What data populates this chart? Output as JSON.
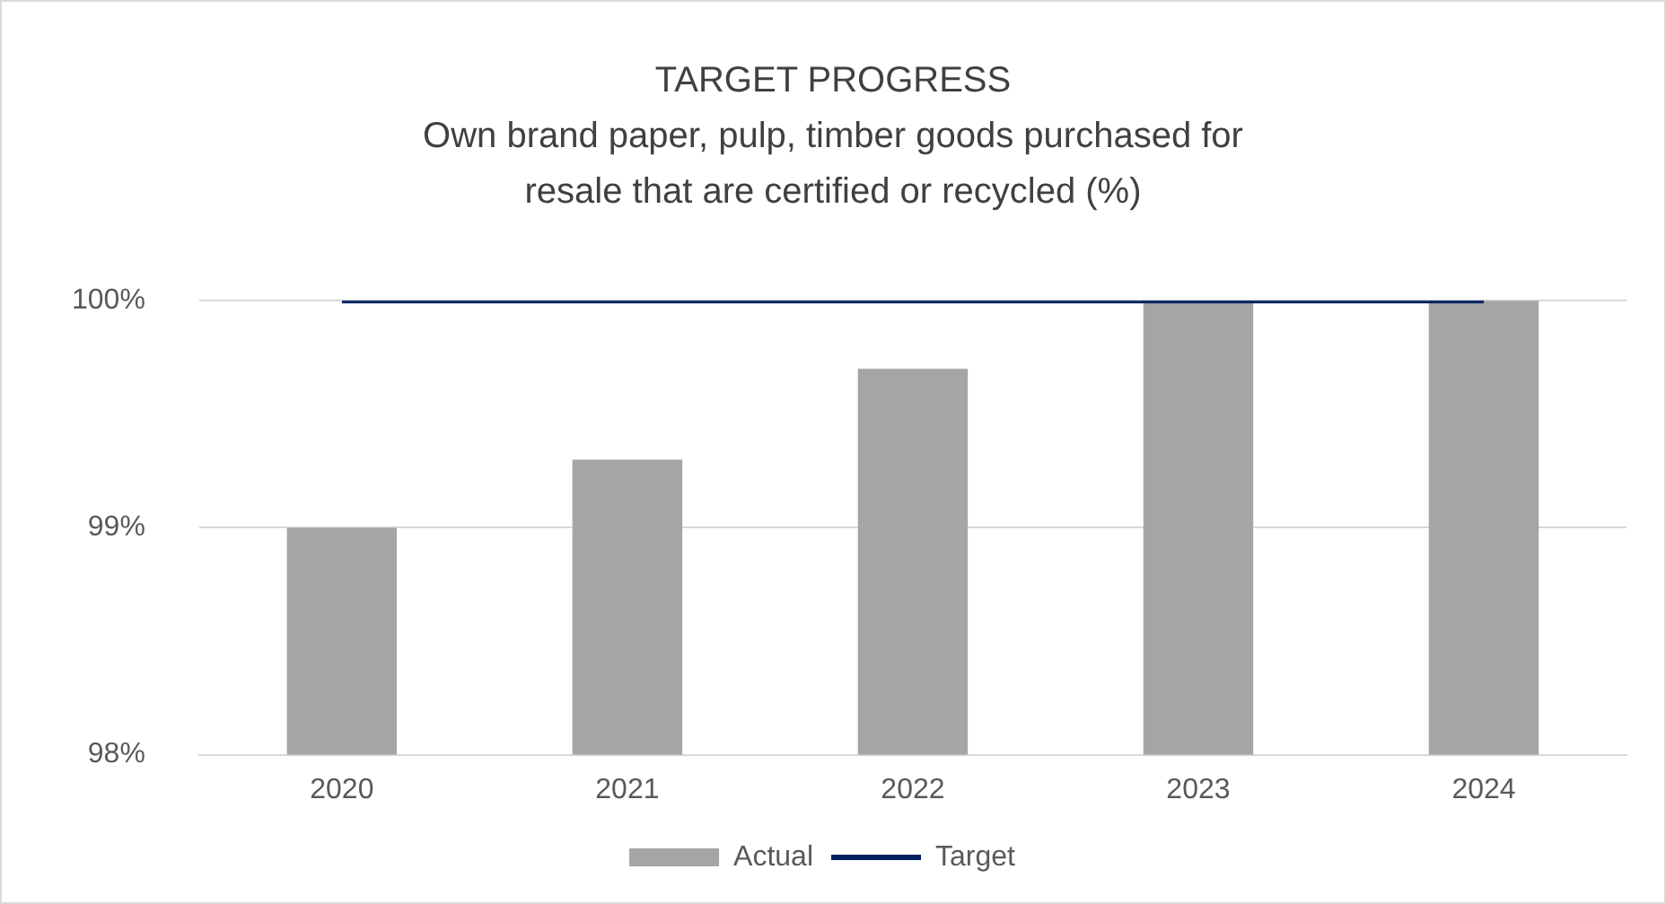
{
  "chart_data": {
    "type": "bar",
    "title": "TARGET PROGRESS",
    "subtitle": "Own brand paper, pulp, timber goods purchased for resale that are certified or recycled (%)",
    "categories": [
      "2020",
      "2021",
      "2022",
      "2023",
      "2024"
    ],
    "series": [
      {
        "name": "Actual",
        "color": "#a5a5a5",
        "values": [
          99.0,
          99.3,
          99.7,
          100,
          100
        ]
      },
      {
        "name": "Target",
        "type": "line",
        "color": "#002060",
        "values": [
          100,
          100,
          100,
          100,
          100
        ]
      }
    ],
    "ylim": [
      98,
      100
    ],
    "yticks": [
      {
        "value": 98,
        "label": "98%"
      },
      {
        "value": 99,
        "label": "99%"
      },
      {
        "value": 100,
        "label": "100%"
      }
    ],
    "grid": "y",
    "legend": "bottom",
    "marker": "none",
    "line_style": "solid"
  }
}
